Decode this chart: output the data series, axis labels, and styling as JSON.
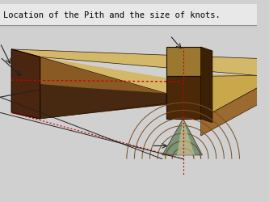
{
  "title": "Location of the Pith and the size of knots.",
  "bg_color": "#d0d0d0",
  "title_bg": "#e8e8e8",
  "lumber_top_color_light": "#d4b86a",
  "lumber_top_color_mid": "#b89a40",
  "lumber_side_dark": "#4a2510",
  "lumber_face_mid": "#7a4a20",
  "knot_block_top": "#8a6830",
  "knot_block_face": "#5a3010",
  "knot_block_side": "#4a2808",
  "ring_color": "#7a5020",
  "cone_green": "#5a8060",
  "pith_line_color": "#cc0000",
  "arrow_color": "#222222",
  "title_line_color": "#888888"
}
